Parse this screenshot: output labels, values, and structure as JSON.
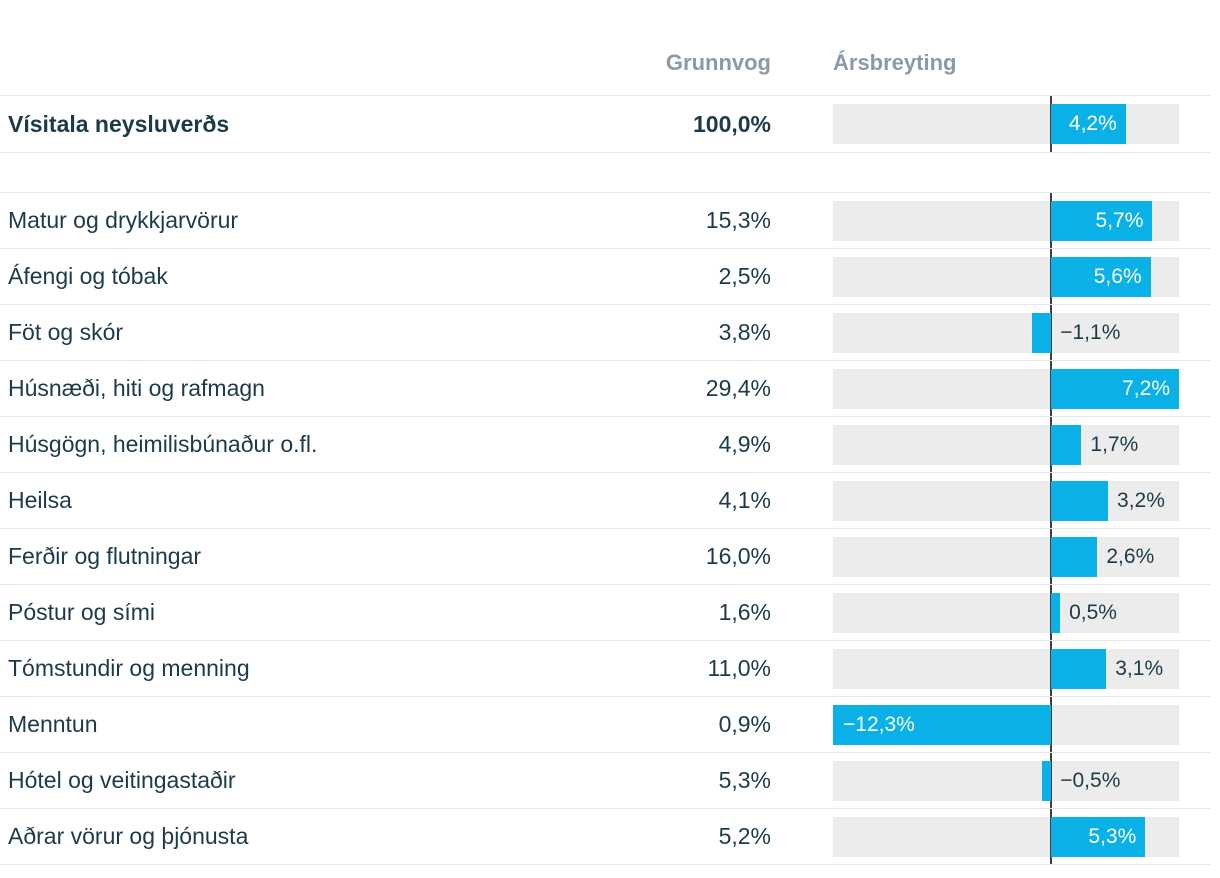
{
  "header": {
    "col_weight": "Grunnvog",
    "col_change": "Ársbreyting"
  },
  "colors": {
    "bar": "#0ab1e6",
    "track": "#ececec",
    "text": "#1c3b4a",
    "header_text": "#8b9aa4",
    "zero_line": "#404040",
    "border": "#e6e6e6",
    "bar_label_inside": "#ffffff"
  },
  "chart_data": {
    "type": "bar",
    "orientation": "horizontal",
    "title": "",
    "columns": [
      "Grunnvog",
      "Ársbreyting"
    ],
    "axis": {
      "min": -12.3,
      "max": 7.2,
      "unit": "%"
    },
    "inside_label_threshold": 4,
    "total": {
      "label": "Vísitala neysluverðs",
      "weight": "100,0%",
      "change": 4.2,
      "change_label": "4,2%"
    },
    "rows": [
      {
        "label": "Matur og drykkjarvörur",
        "weight": "15,3%",
        "change": 5.7,
        "change_label": "5,7%"
      },
      {
        "label": "Áfengi og tóbak",
        "weight": "2,5%",
        "change": 5.6,
        "change_label": "5,6%"
      },
      {
        "label": "Föt og skór",
        "weight": "3,8%",
        "change": -1.1,
        "change_label": "−1,1%"
      },
      {
        "label": "Húsnæði, hiti og rafmagn",
        "weight": "29,4%",
        "change": 7.2,
        "change_label": "7,2%"
      },
      {
        "label": "Húsgögn, heimilisbúnaður o.fl.",
        "weight": "4,9%",
        "change": 1.7,
        "change_label": "1,7%"
      },
      {
        "label": "Heilsa",
        "weight": "4,1%",
        "change": 3.2,
        "change_label": "3,2%"
      },
      {
        "label": "Ferðir og flutningar",
        "weight": "16,0%",
        "change": 2.6,
        "change_label": "2,6%"
      },
      {
        "label": "Póstur og sími",
        "weight": "1,6%",
        "change": 0.5,
        "change_label": "0,5%"
      },
      {
        "label": "Tómstundir og menning",
        "weight": "11,0%",
        "change": 3.1,
        "change_label": "3,1%"
      },
      {
        "label": "Menntun",
        "weight": "0,9%",
        "change": -12.3,
        "change_label": "−12,3%"
      },
      {
        "label": "Hótel og veitingastaðir",
        "weight": "5,3%",
        "change": -0.5,
        "change_label": "−0,5%"
      },
      {
        "label": "Aðrar vörur og þjónusta",
        "weight": "5,2%",
        "change": 5.3,
        "change_label": "5,3%"
      }
    ]
  }
}
